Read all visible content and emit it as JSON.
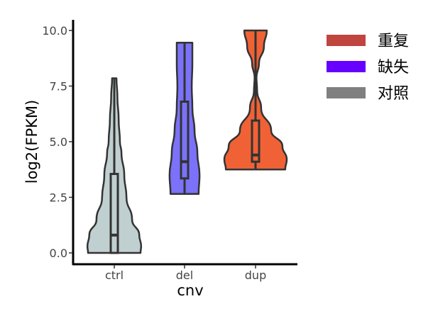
{
  "chart_data": {
    "type": "violin",
    "xlabel": "cnv",
    "ylabel": "log2(FPKM)",
    "ylim": [
      0,
      10
    ],
    "yticks": [
      "0.0",
      "2.5",
      "5.0",
      "7.5",
      "10.0"
    ],
    "ytick_values": [
      0,
      2.5,
      5,
      7.5,
      10
    ],
    "categories": [
      "ctrl",
      "del",
      "dup"
    ],
    "grid": false,
    "legend_position": "right",
    "legend": [
      {
        "label": "重复",
        "color": "#c0453f"
      },
      {
        "label": "缺失",
        "color": "#6600ff"
      },
      {
        "label": "对照",
        "color": "#808080"
      }
    ],
    "series": [
      {
        "name": "ctrl",
        "fill": "#c0cfcf",
        "min": 0,
        "q1": 0,
        "median": 0.8,
        "q3": 3.55,
        "max": 7.85,
        "density": [
          [
            0,
            0.84
          ],
          [
            0.3,
            0.86
          ],
          [
            0.8,
            0.8
          ],
          [
            1.5,
            0.57
          ],
          [
            2.5,
            0.39
          ],
          [
            3.5,
            0.32
          ],
          [
            4.5,
            0.23
          ],
          [
            5,
            0.18
          ],
          [
            6,
            0.14
          ],
          [
            7,
            0.1
          ],
          [
            7.85,
            0.07
          ]
        ]
      },
      {
        "name": "del",
        "fill": "#7b72f9",
        "min": 2.65,
        "q1": 3.35,
        "median": 4.1,
        "q3": 6.8,
        "max": 9.45,
        "density": [
          [
            2.65,
            0.45
          ],
          [
            3.5,
            0.48
          ],
          [
            4.5,
            0.41
          ],
          [
            5.5,
            0.32
          ],
          [
            6.5,
            0.25
          ],
          [
            7.5,
            0.23
          ],
          [
            8.5,
            0.25
          ],
          [
            9.45,
            0.25
          ]
        ]
      },
      {
        "name": "dup",
        "fill": "#f06236",
        "min": 3.75,
        "q1": 4.1,
        "median": 4.4,
        "q3": 5.95,
        "max": 10.0,
        "density": [
          [
            3.75,
            0.95
          ],
          [
            4.2,
            1.0
          ],
          [
            4.8,
            0.86
          ],
          [
            5.5,
            0.5
          ],
          [
            6.5,
            0.18
          ],
          [
            7.3,
            0.05
          ],
          [
            7.9,
            0.03
          ],
          [
            8.5,
            0.11
          ],
          [
            9.3,
            0.27
          ],
          [
            10,
            0.36
          ]
        ]
      }
    ]
  }
}
